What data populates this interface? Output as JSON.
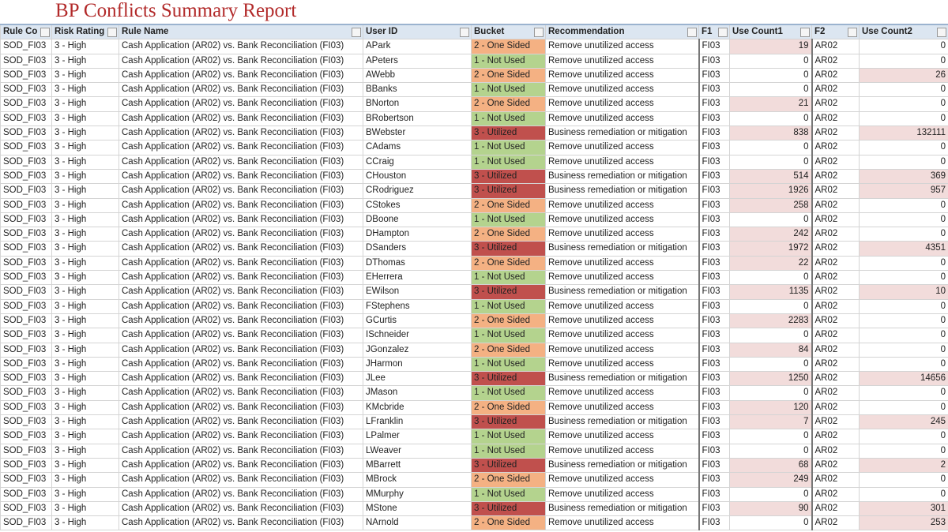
{
  "header": {
    "title": "BP Conflicts Summary Report"
  },
  "table": {
    "columns": [
      "Rule Co",
      "Risk Rating",
      "Rule Name",
      "User ID",
      "Bucket",
      "Recommendation",
      "F1",
      "Use Count1",
      "F2",
      "Use Count2"
    ],
    "rows": [
      [
        "SOD_FI03",
        "3 - High",
        "Cash Application (AR02) vs. Bank Reconciliation (FI03)",
        "APark",
        "2 - One Sided",
        "Remove unutilized access",
        "FI03",
        19,
        "AR02",
        0
      ],
      [
        "SOD_FI03",
        "3 - High",
        "Cash Application (AR02) vs. Bank Reconciliation (FI03)",
        "APeters",
        "1 - Not Used",
        "Remove unutilized access",
        "FI03",
        0,
        "AR02",
        0
      ],
      [
        "SOD_FI03",
        "3 - High",
        "Cash Application (AR02) vs. Bank Reconciliation (FI03)",
        "AWebb",
        "2 - One Sided",
        "Remove unutilized access",
        "FI03",
        0,
        "AR02",
        26
      ],
      [
        "SOD_FI03",
        "3 - High",
        "Cash Application (AR02) vs. Bank Reconciliation (FI03)",
        "BBanks",
        "1 - Not Used",
        "Remove unutilized access",
        "FI03",
        0,
        "AR02",
        0
      ],
      [
        "SOD_FI03",
        "3 - High",
        "Cash Application (AR02) vs. Bank Reconciliation (FI03)",
        "BNorton",
        "2 - One Sided",
        "Remove unutilized access",
        "FI03",
        21,
        "AR02",
        0
      ],
      [
        "SOD_FI03",
        "3 - High",
        "Cash Application (AR02) vs. Bank Reconciliation (FI03)",
        "BRobertson",
        "1 - Not Used",
        "Remove unutilized access",
        "FI03",
        0,
        "AR02",
        0
      ],
      [
        "SOD_FI03",
        "3 - High",
        "Cash Application (AR02) vs. Bank Reconciliation (FI03)",
        "BWebster",
        "3 - Utilized",
        "Business remediation or mitigation",
        "FI03",
        838,
        "AR02",
        132111
      ],
      [
        "SOD_FI03",
        "3 - High",
        "Cash Application (AR02) vs. Bank Reconciliation (FI03)",
        "CAdams",
        "1 - Not Used",
        "Remove unutilized access",
        "FI03",
        0,
        "AR02",
        0
      ],
      [
        "SOD_FI03",
        "3 - High",
        "Cash Application (AR02) vs. Bank Reconciliation (FI03)",
        "CCraig",
        "1 - Not Used",
        "Remove unutilized access",
        "FI03",
        0,
        "AR02",
        0
      ],
      [
        "SOD_FI03",
        "3 - High",
        "Cash Application (AR02) vs. Bank Reconciliation (FI03)",
        "CHouston",
        "3 - Utilized",
        "Business remediation or mitigation",
        "FI03",
        514,
        "AR02",
        369
      ],
      [
        "SOD_FI03",
        "3 - High",
        "Cash Application (AR02) vs. Bank Reconciliation (FI03)",
        "CRodriguez",
        "3 - Utilized",
        "Business remediation or mitigation",
        "FI03",
        1926,
        "AR02",
        957
      ],
      [
        "SOD_FI03",
        "3 - High",
        "Cash Application (AR02) vs. Bank Reconciliation (FI03)",
        "CStokes",
        "2 - One Sided",
        "Remove unutilized access",
        "FI03",
        258,
        "AR02",
        0
      ],
      [
        "SOD_FI03",
        "3 - High",
        "Cash Application (AR02) vs. Bank Reconciliation (FI03)",
        "DBoone",
        "1 - Not Used",
        "Remove unutilized access",
        "FI03",
        0,
        "AR02",
        0
      ],
      [
        "SOD_FI03",
        "3 - High",
        "Cash Application (AR02) vs. Bank Reconciliation (FI03)",
        "DHampton",
        "2 - One Sided",
        "Remove unutilized access",
        "FI03",
        242,
        "AR02",
        0
      ],
      [
        "SOD_FI03",
        "3 - High",
        "Cash Application (AR02) vs. Bank Reconciliation (FI03)",
        "DSanders",
        "3 - Utilized",
        "Business remediation or mitigation",
        "FI03",
        1972,
        "AR02",
        4351
      ],
      [
        "SOD_FI03",
        "3 - High",
        "Cash Application (AR02) vs. Bank Reconciliation (FI03)",
        "DThomas",
        "2 - One Sided",
        "Remove unutilized access",
        "FI03",
        22,
        "AR02",
        0
      ],
      [
        "SOD_FI03",
        "3 - High",
        "Cash Application (AR02) vs. Bank Reconciliation (FI03)",
        "EHerrera",
        "1 - Not Used",
        "Remove unutilized access",
        "FI03",
        0,
        "AR02",
        0
      ],
      [
        "SOD_FI03",
        "3 - High",
        "Cash Application (AR02) vs. Bank Reconciliation (FI03)",
        "EWilson",
        "3 - Utilized",
        "Business remediation or mitigation",
        "FI03",
        1135,
        "AR02",
        10
      ],
      [
        "SOD_FI03",
        "3 - High",
        "Cash Application (AR02) vs. Bank Reconciliation (FI03)",
        "FStephens",
        "1 - Not Used",
        "Remove unutilized access",
        "FI03",
        0,
        "AR02",
        0
      ],
      [
        "SOD_FI03",
        "3 - High",
        "Cash Application (AR02) vs. Bank Reconciliation (FI03)",
        "GCurtis",
        "2 - One Sided",
        "Remove unutilized access",
        "FI03",
        2283,
        "AR02",
        0
      ],
      [
        "SOD_FI03",
        "3 - High",
        "Cash Application (AR02) vs. Bank Reconciliation (FI03)",
        "ISchneider",
        "1 - Not Used",
        "Remove unutilized access",
        "FI03",
        0,
        "AR02",
        0
      ],
      [
        "SOD_FI03",
        "3 - High",
        "Cash Application (AR02) vs. Bank Reconciliation (FI03)",
        "JGonzalez",
        "2 - One Sided",
        "Remove unutilized access",
        "FI03",
        84,
        "AR02",
        0
      ],
      [
        "SOD_FI03",
        "3 - High",
        "Cash Application (AR02) vs. Bank Reconciliation (FI03)",
        "JHarmon",
        "1 - Not Used",
        "Remove unutilized access",
        "FI03",
        0,
        "AR02",
        0
      ],
      [
        "SOD_FI03",
        "3 - High",
        "Cash Application (AR02) vs. Bank Reconciliation (FI03)",
        "JLee",
        "3 - Utilized",
        "Business remediation or mitigation",
        "FI03",
        1250,
        "AR02",
        14656
      ],
      [
        "SOD_FI03",
        "3 - High",
        "Cash Application (AR02) vs. Bank Reconciliation (FI03)",
        "JMason",
        "1 - Not Used",
        "Remove unutilized access",
        "FI03",
        0,
        "AR02",
        0
      ],
      [
        "SOD_FI03",
        "3 - High",
        "Cash Application (AR02) vs. Bank Reconciliation (FI03)",
        "KMcbride",
        "2 - One Sided",
        "Remove unutilized access",
        "FI03",
        120,
        "AR02",
        0
      ],
      [
        "SOD_FI03",
        "3 - High",
        "Cash Application (AR02) vs. Bank Reconciliation (FI03)",
        "LFranklin",
        "3 - Utilized",
        "Business remediation or mitigation",
        "FI03",
        7,
        "AR02",
        245
      ],
      [
        "SOD_FI03",
        "3 - High",
        "Cash Application (AR02) vs. Bank Reconciliation (FI03)",
        "LPalmer",
        "1 - Not Used",
        "Remove unutilized access",
        "FI03",
        0,
        "AR02",
        0
      ],
      [
        "SOD_FI03",
        "3 - High",
        "Cash Application (AR02) vs. Bank Reconciliation (FI03)",
        "LWeaver",
        "1 - Not Used",
        "Remove unutilized access",
        "FI03",
        0,
        "AR02",
        0
      ],
      [
        "SOD_FI03",
        "3 - High",
        "Cash Application (AR02) vs. Bank Reconciliation (FI03)",
        "MBarrett",
        "3 - Utilized",
        "Business remediation or mitigation",
        "FI03",
        68,
        "AR02",
        2
      ],
      [
        "SOD_FI03",
        "3 - High",
        "Cash Application (AR02) vs. Bank Reconciliation (FI03)",
        "MBrock",
        "2 - One Sided",
        "Remove unutilized access",
        "FI03",
        249,
        "AR02",
        0
      ],
      [
        "SOD_FI03",
        "3 - High",
        "Cash Application (AR02) vs. Bank Reconciliation (FI03)",
        "MMurphy",
        "1 - Not Used",
        "Remove unutilized access",
        "FI03",
        0,
        "AR02",
        0
      ],
      [
        "SOD_FI03",
        "3 - High",
        "Cash Application (AR02) vs. Bank Reconciliation (FI03)",
        "MStone",
        "3 - Utilized",
        "Business remediation or mitigation",
        "FI03",
        90,
        "AR02",
        301
      ],
      [
        "SOD_FI03",
        "3 - High",
        "Cash Application (AR02) vs. Bank Reconciliation (FI03)",
        "NArnold",
        "2 - One Sided",
        "Remove unutilized access",
        "FI03",
        0,
        "AR02",
        253
      ]
    ]
  }
}
